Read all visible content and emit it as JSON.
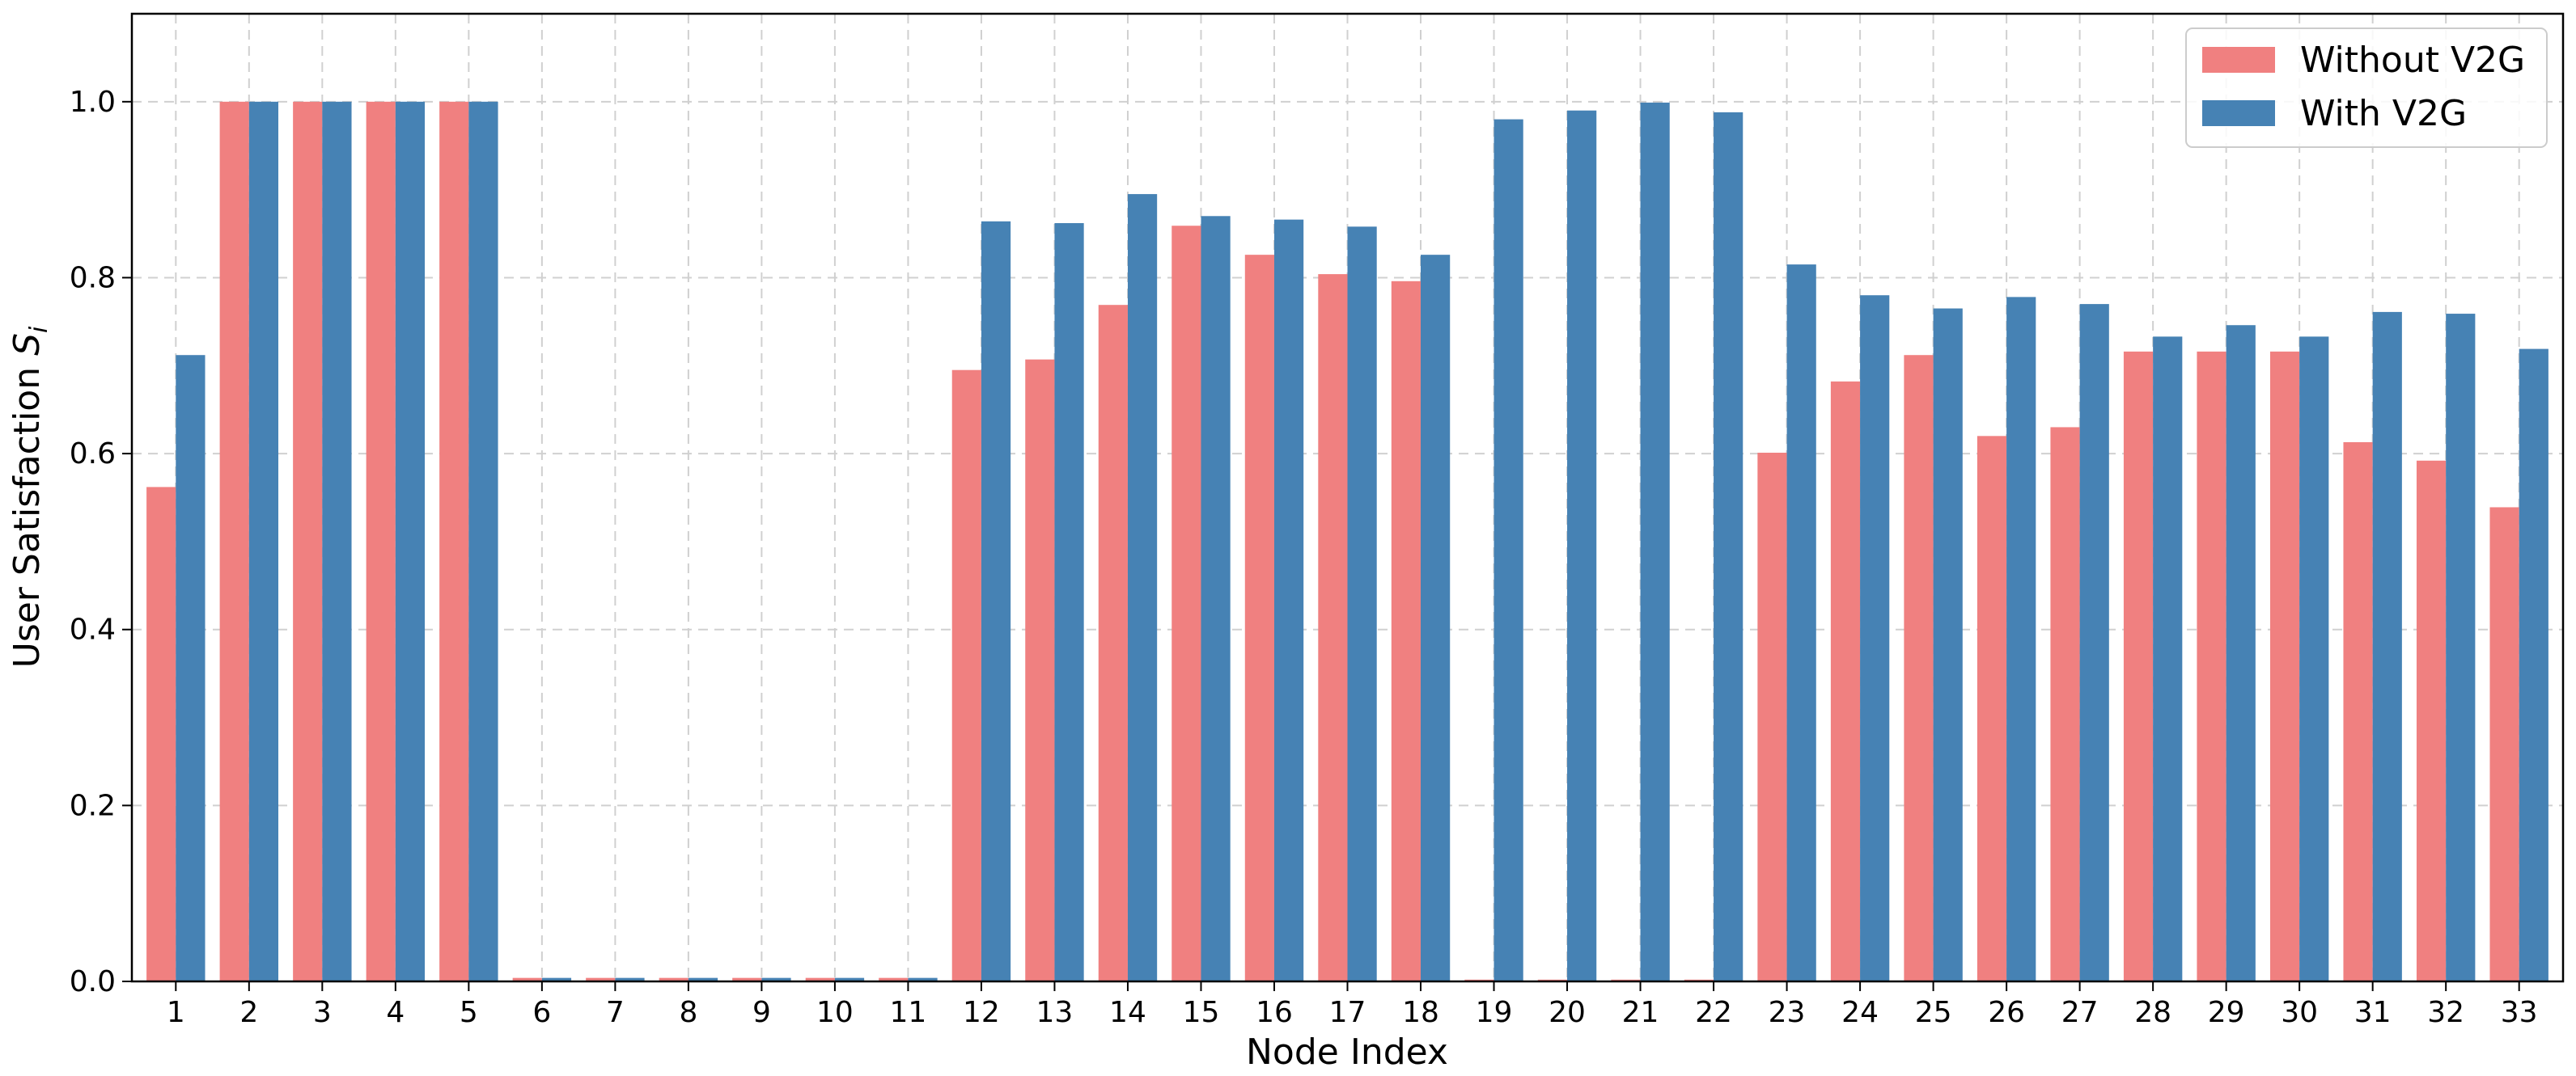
{
  "chart_data": {
    "type": "bar",
    "xlabel": "Node Index",
    "ylabel": "User Satisfaction",
    "ylabel_symbol": "S",
    "ylabel_subscript": "i",
    "ylim": [
      0,
      1.1
    ],
    "yticks": [
      "0.0",
      "0.2",
      "0.4",
      "0.6",
      "0.8",
      "1.0"
    ],
    "grid": true,
    "legend_position": "top-right",
    "categories": [
      "1",
      "2",
      "3",
      "4",
      "5",
      "6",
      "7",
      "8",
      "9",
      "10",
      "11",
      "12",
      "13",
      "14",
      "15",
      "16",
      "17",
      "18",
      "19",
      "20",
      "21",
      "22",
      "23",
      "24",
      "25",
      "26",
      "27",
      "28",
      "29",
      "30",
      "31",
      "32",
      "33"
    ],
    "series": [
      {
        "name": "Without V2G",
        "color": "#f08080",
        "values": [
          0.562,
          1.0,
          1.0,
          1.0,
          1.0,
          0.004,
          0.004,
          0.004,
          0.004,
          0.004,
          0.004,
          0.695,
          0.707,
          0.769,
          0.859,
          0.826,
          0.804,
          0.796,
          0.002,
          0.002,
          0.002,
          0.002,
          0.601,
          0.682,
          0.712,
          0.62,
          0.63,
          0.716,
          0.716,
          0.716,
          0.613,
          0.592,
          0.539
        ]
      },
      {
        "name": "With V2G",
        "color": "#4682b4",
        "values": [
          0.712,
          1.0,
          1.0,
          1.0,
          1.0,
          0.004,
          0.004,
          0.004,
          0.004,
          0.004,
          0.004,
          0.864,
          0.862,
          0.895,
          0.87,
          0.866,
          0.858,
          0.826,
          0.98,
          0.99,
          0.999,
          0.988,
          0.815,
          0.78,
          0.765,
          0.778,
          0.77,
          0.733,
          0.746,
          0.733,
          0.761,
          0.759,
          0.719
        ]
      }
    ]
  }
}
